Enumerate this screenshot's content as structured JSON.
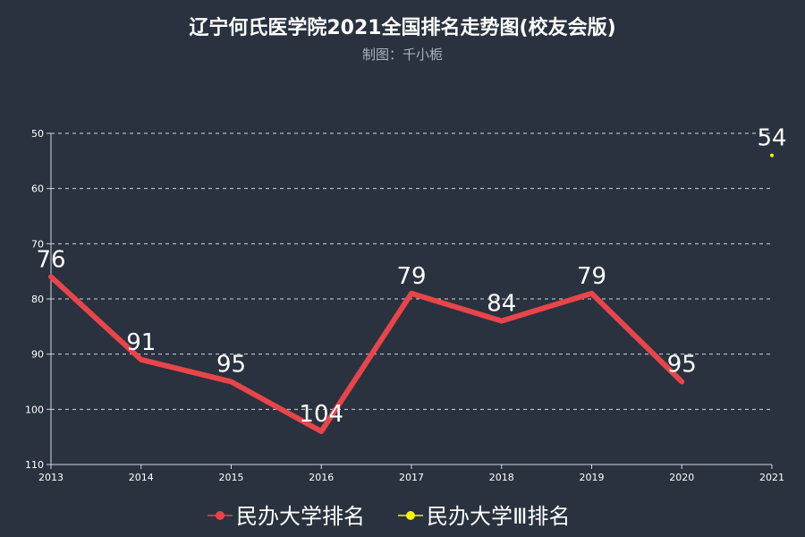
{
  "chart_data": {
    "type": "line",
    "title": "辽宁何氏医学院2021全国排名走势图(校友会版)",
    "subtitle": "制图：千小栀",
    "x": [
      "2013",
      "2014",
      "2015",
      "2016",
      "2017",
      "2018",
      "2019",
      "2020",
      "2021"
    ],
    "y_ticks": [
      "50",
      "60",
      "70",
      "80",
      "90",
      "100",
      "110"
    ],
    "ylim": [
      50,
      110
    ],
    "y_inverted": true,
    "grid": true,
    "legend_position": "bottom",
    "series": [
      {
        "name": "民办大学排名",
        "color": "#e8454a",
        "values": [
          76,
          91,
          95,
          104,
          79,
          84,
          79,
          95,
          null
        ]
      },
      {
        "name": "民办大学Ⅲ排名",
        "color": "#f5f500",
        "values": [
          null,
          null,
          null,
          null,
          null,
          null,
          null,
          null,
          54
        ]
      }
    ]
  }
}
